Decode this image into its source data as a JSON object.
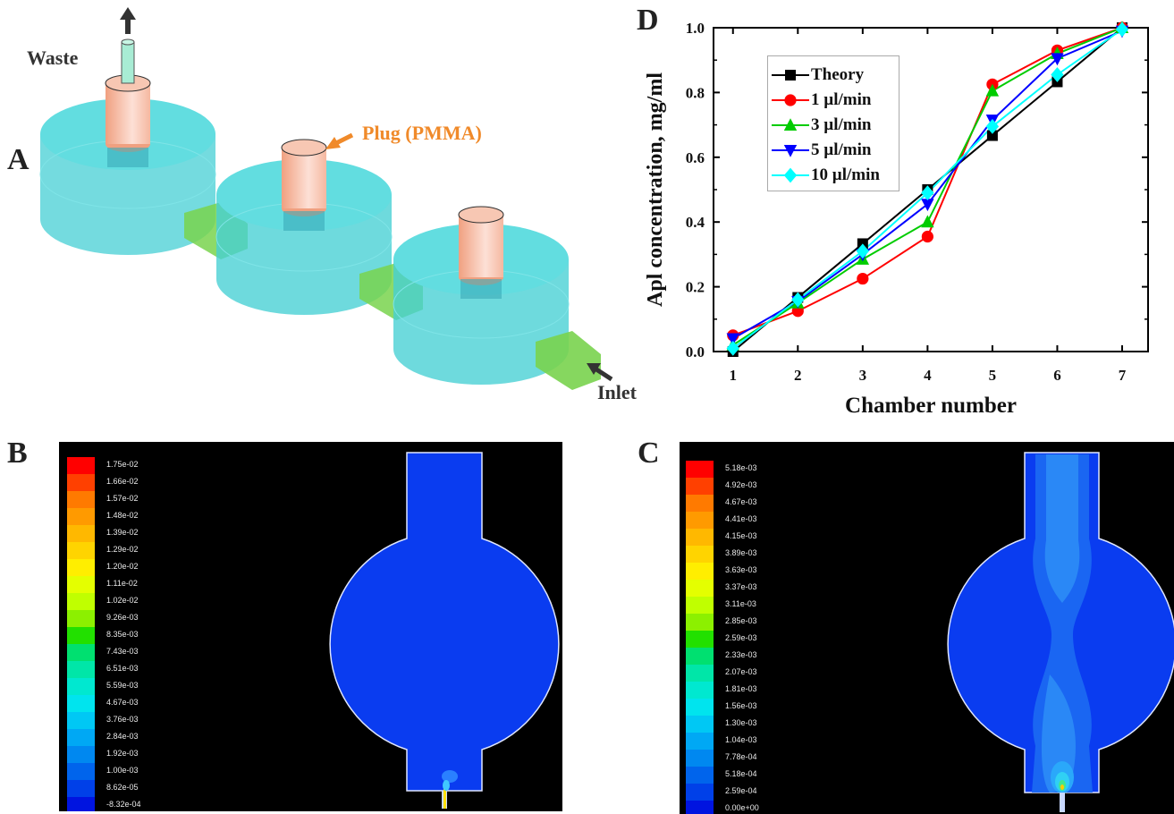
{
  "panels": {
    "a": {
      "letter": "A",
      "waste_label": "Waste",
      "plug_label": "Plug (PMMA)",
      "inlet_label": "Inlet",
      "colors": {
        "chamber": "#3ecfd4",
        "plug": "#f3b69a",
        "connector": "#6fd14a",
        "waste_tube": "#9fe6c8",
        "plug_label": "#f08a2a"
      }
    },
    "b": {
      "letter": "B",
      "colorbar_labels": [
        "1.75e-02",
        "1.66e-02",
        "1.57e-02",
        "1.48e-02",
        "1.39e-02",
        "1.29e-02",
        "1.20e-02",
        "1.11e-02",
        "1.02e-02",
        "9.26e-03",
        "8.35e-03",
        "7.43e-03",
        "6.51e-03",
        "5.59e-03",
        "4.67e-03",
        "3.76e-03",
        "2.84e-03",
        "1.92e-03",
        "1.00e-03",
        "8.62e-05",
        "-8.32e-04"
      ]
    },
    "c": {
      "letter": "C",
      "colorbar_labels": [
        "5.18e-03",
        "4.92e-03",
        "4.67e-03",
        "4.41e-03",
        "4.15e-03",
        "3.89e-03",
        "3.63e-03",
        "3.37e-03",
        "3.11e-03",
        "2.85e-03",
        "2.59e-03",
        "2.33e-03",
        "2.07e-03",
        "1.81e-03",
        "1.56e-03",
        "1.30e-03",
        "1.04e-03",
        "7.78e-04",
        "5.18e-04",
        "2.59e-04",
        "0.00e+00"
      ]
    },
    "d": {
      "letter": "D"
    }
  },
  "colormap": [
    "#ff0000",
    "#ff4000",
    "#ff7a00",
    "#ff9a00",
    "#ffb800",
    "#ffd400",
    "#ffee00",
    "#e4ff00",
    "#c0ff00",
    "#8cf000",
    "#22e000",
    "#00e070",
    "#00e6a8",
    "#00e8d0",
    "#00e4ee",
    "#00c8f4",
    "#00a8f4",
    "#0088f0",
    "#0064ec",
    "#0040e8",
    "#0014e0"
  ],
  "chart_data": {
    "type": "line",
    "xlabel": "Chamber number",
    "ylabel": "Apl concentration, mg/ml",
    "x": [
      1,
      2,
      3,
      4,
      5,
      6,
      7
    ],
    "xlim": [
      0.7,
      7.4
    ],
    "ylim": [
      0,
      1.0
    ],
    "yticks": [
      "0.0",
      "0.2",
      "0.4",
      "0.6",
      "0.8",
      "1.0"
    ],
    "legend_position": "top-left",
    "series": [
      {
        "name": "Theory",
        "marker": "square",
        "color": "#000000",
        "values": [
          0.0,
          0.167,
          0.333,
          0.5,
          0.667,
          0.833,
          1.0
        ]
      },
      {
        "name": "1 µl/min",
        "marker": "circle",
        "color": "#ff0000",
        "values": [
          0.05,
          0.125,
          0.225,
          0.355,
          0.825,
          0.93,
          1.0
        ]
      },
      {
        "name": "3 µl/min",
        "marker": "triangle",
        "color": "#00cc00",
        "values": [
          0.02,
          0.15,
          0.285,
          0.4,
          0.805,
          0.92,
          1.0
        ]
      },
      {
        "name": "5 µl/min",
        "marker": "tri-down",
        "color": "#0000ff",
        "values": [
          0.04,
          0.155,
          0.3,
          0.455,
          0.715,
          0.905,
          0.99
        ]
      },
      {
        "name": "10 µl/min",
        "marker": "diamond",
        "color": "#00ffff",
        "values": [
          0.01,
          0.16,
          0.31,
          0.49,
          0.695,
          0.855,
          0.995
        ]
      }
    ]
  }
}
